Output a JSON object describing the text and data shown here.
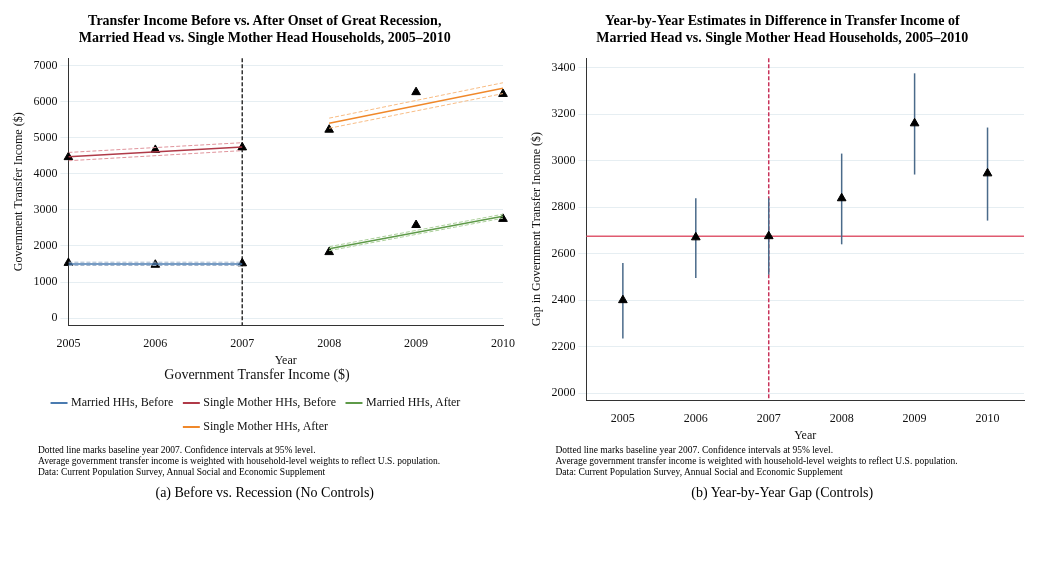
{
  "chart_data": [
    {
      "type": "line",
      "title": "Transfer Income Before vs. After Onset of Great Recession,\nMarried Head vs. Single Mother Head Households, 2005–2010",
      "xlabel": "Year",
      "ylabel": "Government Transfer Income ($)",
      "legend_title": "Government Transfer Income ($)",
      "legend": "bottom",
      "grid": "y",
      "xlim": [
        2005,
        2010
      ],
      "xticks": [
        2005,
        2006,
        2007,
        2008,
        2009,
        2010
      ],
      "ylim": [
        -200,
        7200
      ],
      "yticks": [
        0,
        1000,
        2000,
        3000,
        4000,
        5000,
        6000,
        7000
      ],
      "series": [
        {
          "name": "Married HHs, Before",
          "color": "#4a7bb0",
          "x": [
            2005,
            2007
          ],
          "values": [
            1500,
            1500
          ]
        },
        {
          "name": "Single Mother HHs, Before",
          "color": "#b03a48",
          "x": [
            2005,
            2007
          ],
          "values": [
            4470,
            4740
          ]
        },
        {
          "name": "Married HHs, After",
          "color": "#5e9a48",
          "x": [
            2008,
            2010
          ],
          "values": [
            1920,
            2820
          ]
        },
        {
          "name": "Single Mother HHs, After",
          "color": "#f0882a",
          "x": [
            2008,
            2010
          ],
          "values": [
            5400,
            6370
          ]
        },
        {
          "color": "#a0b4cc",
          "line_style": "dashed",
          "x": [
            2005,
            2007
          ],
          "values": [
            1460,
            1460
          ]
        },
        {
          "color": "#a0b4cc",
          "line_style": "dashed",
          "x": [
            2005,
            2007
          ],
          "values": [
            1550,
            1550
          ]
        },
        {
          "color": "#e0949c",
          "line_style": "dashed",
          "x": [
            2005,
            2007
          ],
          "values": [
            4360,
            4640
          ]
        },
        {
          "color": "#e0949c",
          "line_style": "dashed",
          "x": [
            2005,
            2007
          ],
          "values": [
            4590,
            4860
          ]
        },
        {
          "color": "#acd09c",
          "line_style": "dashed",
          "x": [
            2008,
            2010
          ],
          "values": [
            1870,
            2770
          ]
        },
        {
          "color": "#acd09c",
          "line_style": "dashed",
          "x": [
            2008,
            2010
          ],
          "values": [
            1980,
            2880
          ]
        },
        {
          "color": "#f8bc84",
          "line_style": "dashed",
          "x": [
            2008,
            2010
          ],
          "values": [
            5260,
            6220
          ]
        },
        {
          "color": "#f8bc84",
          "line_style": "dashed",
          "x": [
            2008,
            2010
          ],
          "values": [
            5540,
            6520
          ]
        },
        {
          "type": "scatter",
          "marker": "triangle",
          "color": "#000000",
          "x": [
            2005,
            2006,
            2007,
            2008,
            2009,
            2010
          ],
          "values": [
            1530,
            1480,
            1520,
            1830,
            2580,
            2750
          ]
        },
        {
          "type": "scatter",
          "marker": "triangle",
          "color": "#000000",
          "x": [
            2005,
            2006,
            2007,
            2008,
            2009,
            2010
          ],
          "values": [
            4460,
            4660,
            4730,
            5220,
            6260,
            6210
          ]
        }
      ],
      "ref_lines": [
        {
          "axis": "x",
          "value": 2007,
          "color": "#333333",
          "line_style": "dashed"
        }
      ],
      "annotations": [
        "Dotted line marks baseline year 2007. Confidence intervals at 95% level.",
        "Average government transfer income is weighted with household-level weights to reflect U.S. population.",
        "Data: Current Population Survey, Annual Social and Economic Supplement",
        "(a) Before vs. Recession (No Controls)"
      ]
    },
    {
      "type": "scatter",
      "title": "Year-by-Year Estimates in Difference in Transfer Income of\nMarried Head vs. Single Mother Head Households, 2005–2010",
      "xlabel": "Year",
      "ylabel": "Gap in Government Transfer Income ($)",
      "grid": "y",
      "xlim": [
        2004.5,
        2010.5
      ],
      "xticks": [
        2005,
        2006,
        2007,
        2008,
        2009,
        2010
      ],
      "ylim": [
        1970,
        3440
      ],
      "yticks": [
        2000,
        2200,
        2400,
        2600,
        2800,
        3000,
        3200,
        3400
      ],
      "series": [
        {
          "marker": "triangle",
          "color": "#000000",
          "x": [
            2005,
            2006,
            2007,
            2008,
            2009,
            2010
          ],
          "values": [
            2400,
            2670,
            2675,
            2838,
            3160,
            2945
          ],
          "errors": [
            [
              2235,
              2560
            ],
            [
              2495,
              2838
            ],
            [
              2510,
              2838
            ],
            [
              2640,
              3030
            ],
            [
              2940,
              3375
            ],
            [
              2742,
              3142
            ]
          ]
        }
      ],
      "ref_lines": [
        {
          "axis": "y",
          "value": 2675,
          "color": "#e05a70",
          "line_style": "solid"
        },
        {
          "axis": "x",
          "value": 2007,
          "color": "#c8325a",
          "line_style": "dashed"
        }
      ],
      "annotations": [
        "Dotted line marks baseline year 2007. Confidence intervals at 95% level.",
        "Average government transfer income is weighted with household-level weights to reflect U.S. population.",
        "Data: Current Population Survey, Annual Social and Economic Supplement",
        "(b) Year-by-Year Gap (Controls)"
      ]
    }
  ]
}
